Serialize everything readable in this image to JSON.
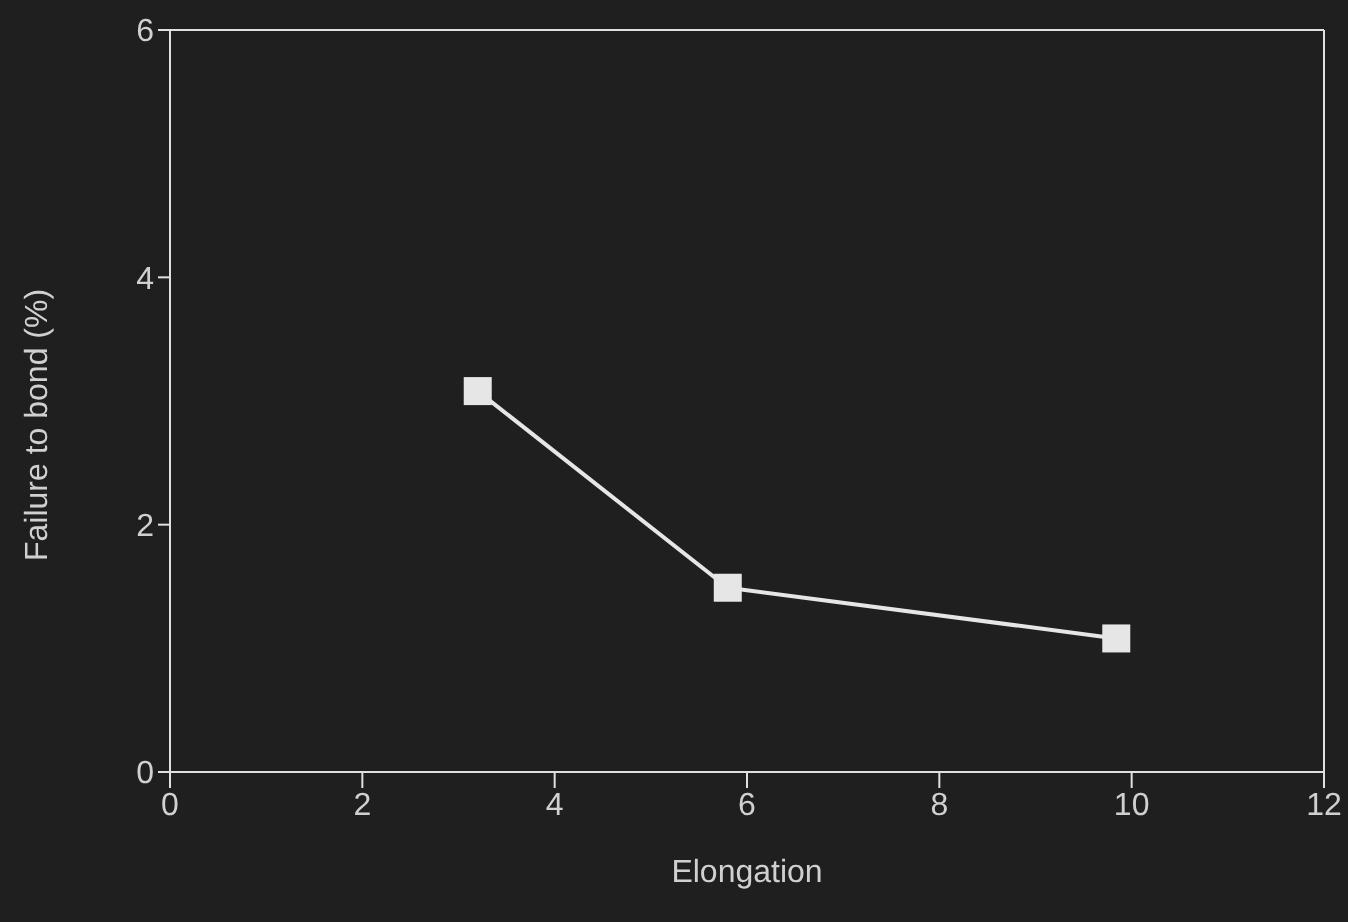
{
  "chart_data": {
    "type": "line",
    "xlabel": "Elongation",
    "ylabel": "Failure to bond (%)",
    "x": [
      3.2,
      5.8,
      9.84
    ],
    "series": [
      {
        "color": "#e6e6e6",
        "values": [
          3.08,
          1.49,
          1.08
        ]
      }
    ],
    "xlim": [
      0,
      12
    ],
    "xticks": [
      0,
      2,
      4,
      6,
      8,
      10,
      12
    ],
    "ylim": [
      0,
      6
    ],
    "yticks": [
      0,
      2,
      4,
      6
    ],
    "grid": false,
    "legend": false,
    "marker": "square",
    "line_style": "solid"
  }
}
